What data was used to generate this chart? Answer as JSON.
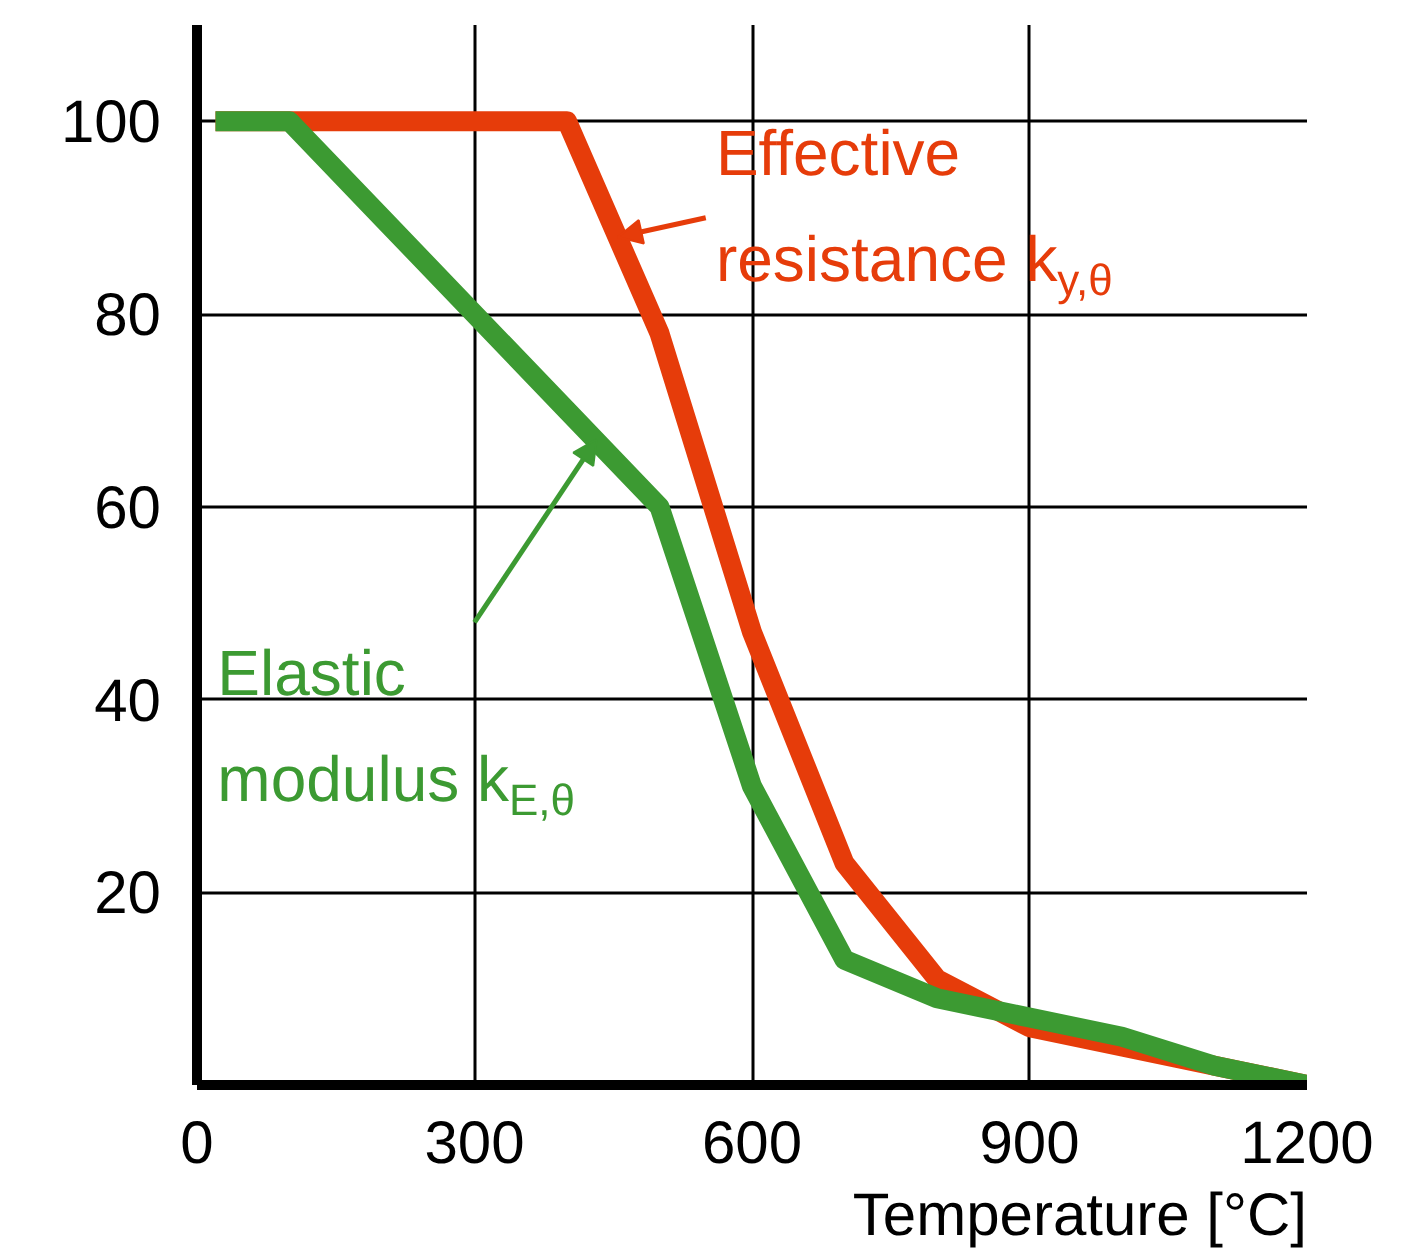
{
  "chart_data": {
    "type": "line",
    "xlabel": "Temperature [°C]",
    "x": [
      20,
      100,
      200,
      300,
      400,
      500,
      600,
      700,
      800,
      900,
      1000,
      1100,
      1200
    ],
    "series": [
      {
        "name": "Effective resistance k$_{y,θ}$",
        "color": "#e63c0a",
        "values": [
          100,
          100,
          100,
          100,
          100,
          78,
          47,
          23,
          11,
          6,
          4,
          2,
          0
        ]
      },
      {
        "name": "Elastic modulus k$_{E,θ}$",
        "color": "#3c9a32",
        "values": [
          100,
          100,
          90,
          80,
          70,
          60,
          31,
          13,
          9,
          7,
          5,
          2,
          0
        ]
      }
    ],
    "xlim": [
      0,
      1200
    ],
    "ylim": [
      0,
      110
    ],
    "xticks": [
      0,
      300,
      600,
      900,
      1200
    ],
    "yticks": [
      20,
      40,
      60,
      80,
      100
    ],
    "grid": true,
    "marker": "none",
    "line_style": "solid"
  }
}
